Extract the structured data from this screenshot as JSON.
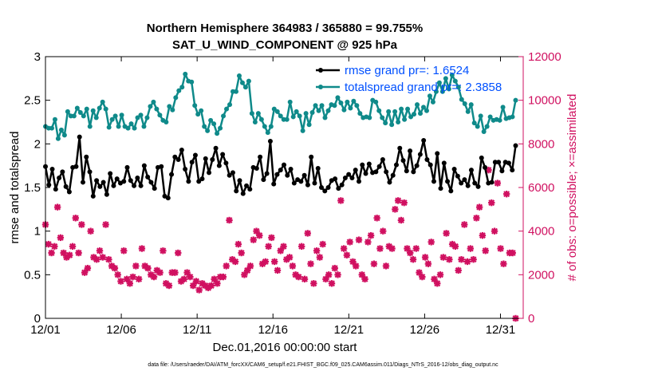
{
  "chart_data": {
    "type": "line",
    "title_line1": "Northern Hemisphere 364983 / 365880 = 99.755%",
    "title_line2": "SAT_U_WIND_COMPONENT @ 925 hPa",
    "xlabel": "Dec.01,2016 00:00:00 start",
    "ylabel": "rmse and totalspread",
    "ylabel_right": "# of obs: o=possible; ×=assimilated",
    "footnote": "data file: /Users/raeder/DAI/ATM_forcXX/CAM6_setup/f.e21.FHIST_BGC.f09_025.CAM6assim.011/Diags_NTrS_2016-12/obs_diag_output.nc",
    "xlim": [
      0,
      31.5
    ],
    "ylim": [
      0,
      3
    ],
    "ylim_right": [
      0,
      12000
    ],
    "x_tick_values": [
      0,
      5,
      10,
      15,
      20,
      25,
      30
    ],
    "x_tick_labels": [
      "12/01",
      "12/06",
      "12/11",
      "12/16",
      "12/21",
      "12/26",
      "12/31"
    ],
    "y_ticks": [
      "0",
      "0.5",
      "1",
      "1.5",
      "2",
      "2.5",
      "3"
    ],
    "y_ticks_right": [
      "0",
      "2000",
      "4000",
      "6000",
      "8000",
      "10000",
      "12000"
    ],
    "legend": [
      "rmse grand pr=: 1.6524",
      "totalspread grand pr=: 2.3858"
    ],
    "colors": {
      "rmse": "#000000",
      "spread": "#0f8a8a",
      "obs": "#d01060",
      "legend_text": "#0050ff"
    },
    "rmse": [
      1.74,
      1.53,
      1.71,
      1.48,
      1.61,
      1.68,
      1.51,
      1.45,
      1.73,
      1.74,
      2.08,
      1.56,
      1.85,
      1.68,
      1.4,
      1.58,
      1.51,
      1.56,
      1.42,
      1.66,
      1.52,
      1.6,
      1.55,
      1.57,
      1.73,
      1.58,
      1.52,
      1.61,
      1.52,
      1.75,
      1.62,
      1.56,
      1.49,
      1.73,
      1.74,
      1.4,
      1.38,
      1.65,
      1.85,
      1.82,
      1.93,
      1.71,
      1.57,
      1.79,
      1.87,
      1.57,
      1.6,
      1.83,
      1.67,
      1.82,
      1.95,
      1.75,
      1.88,
      1.78,
      1.64,
      1.67,
      1.46,
      1.58,
      1.43,
      1.52,
      1.48,
      1.73,
      1.72,
      1.85,
      1.59,
      1.66,
      2.03,
      1.54,
      1.65,
      1.7,
      1.76,
      1.64,
      1.71,
      1.55,
      1.59,
      1.57,
      1.64,
      1.53,
      1.85,
      1.55,
      1.72,
      1.5,
      1.46,
      1.5,
      1.58,
      1.6,
      1.49,
      1.53,
      1.61,
      1.65,
      1.61,
      1.7,
      1.57,
      1.76,
      1.66,
      1.77,
      1.67,
      1.68,
      1.74,
      1.82,
      1.68,
      1.56,
      1.64,
      1.76,
      1.95,
      1.81,
      1.69,
      1.92,
      1.68,
      1.75,
      1.88,
      2.04,
      1.82,
      1.76,
      1.57,
      1.89,
      1.49,
      1.78,
      1.57,
      1.46,
      1.71,
      1.63,
      1.55,
      1.59,
      1.52,
      1.7,
      1.55,
      1.51,
      1.84,
      1.73,
      1.55,
      1.56,
      1.79,
      1.79,
      1.69,
      1.79,
      1.78,
      1.7,
      1.98
    ],
    "spread": [
      2.2,
      2.18,
      2.18,
      2.28,
      2.06,
      2.16,
      2.1,
      2.37,
      2.32,
      2.32,
      2.41,
      2.36,
      2.32,
      2.4,
      2.2,
      2.38,
      2.3,
      2.41,
      2.48,
      2.4,
      2.19,
      2.28,
      2.32,
      2.2,
      2.33,
      2.2,
      2.18,
      2.23,
      2.18,
      2.3,
      2.33,
      2.2,
      2.3,
      2.43,
      2.48,
      2.4,
      2.33,
      2.27,
      2.25,
      2.43,
      2.39,
      2.53,
      2.61,
      2.65,
      2.8,
      2.72,
      2.71,
      2.44,
      2.34,
      2.38,
      2.2,
      2.15,
      2.27,
      2.23,
      2.12,
      2.18,
      2.32,
      2.4,
      2.45,
      2.6,
      2.6,
      2.78,
      2.7,
      2.65,
      2.72,
      2.35,
      2.25,
      2.35,
      2.28,
      2.2,
      2.13,
      2.2,
      2.4,
      2.37,
      2.32,
      2.28,
      2.28,
      2.48,
      2.31,
      2.37,
      2.32,
      2.15,
      2.35,
      2.22,
      2.36,
      2.44,
      2.38,
      2.44,
      2.3,
      2.38,
      2.45,
      2.44,
      2.53,
      2.47,
      2.39,
      2.48,
      2.41,
      2.49,
      2.44,
      2.35,
      2.3,
      2.31,
      2.3,
      2.5,
      2.48,
      2.38,
      2.3,
      2.24,
      2.37,
      2.22,
      2.37,
      2.25,
      2.4,
      2.28,
      2.4,
      2.31,
      2.34,
      2.45,
      2.35,
      2.42,
      2.38,
      2.55,
      2.48,
      2.6,
      2.7,
      2.6,
      2.75,
      2.63,
      2.79,
      2.72,
      2.65,
      2.51,
      2.46,
      2.37,
      2.45,
      2.24,
      2.2,
      2.32,
      2.14,
      2.2,
      2.31,
      2.27,
      2.28,
      2.27,
      2.42,
      2.29,
      2.3,
      2.31,
      2.5
    ],
    "nobs": [
      4300,
      3400,
      3000,
      3300,
      5100,
      3700,
      3000,
      2800,
      2900,
      3300,
      4600,
      3000,
      4300,
      2100,
      2300,
      4000,
      2800,
      2700,
      3100,
      2800,
      4300,
      2700,
      2400,
      2300,
      2000,
      1700,
      3100,
      1800,
      1600,
      1900,
      2400,
      1800,
      3200,
      2400,
      2300,
      2000,
      1900,
      2200,
      2100,
      3100,
      1600,
      1500,
      2100,
      2100,
      3000,
      1700,
      1800,
      2100,
      1900,
      1500,
      1700,
      1300,
      1600,
      1500,
      1400,
      1500,
      1800,
      1600,
      1900,
      1900,
      2400,
      4500,
      2700,
      2600,
      3400,
      3000,
      2000,
      2200,
      2400,
      3600,
      4000,
      3800,
      2500,
      2600,
      3300,
      3700,
      2600,
      2200,
      3100,
      3300,
      2700,
      2800,
      2400,
      2000,
      1900,
      3300,
      1800,
      3900,
      2500,
      1600,
      3100,
      2800,
      3400,
      1800,
      2000,
      1600,
      2300,
      2000,
      5400,
      3200,
      2900,
      3500,
      2600,
      2400,
      3600,
      2000,
      1800,
      3500,
      3800,
      2500,
      4600,
      3200,
      4000,
      2400,
      3300,
      3200,
      5000,
      5400,
      4500,
      5300,
      3200,
      3000,
      2700,
      3200,
      2100,
      1900,
      2800,
      2500,
      3500,
      1800,
      1600,
      2000,
      2800,
      3900,
      2700,
      3400,
      3300,
      2200,
      2700,
      4300,
      2600,
      3200,
      2700,
      4600,
      5100,
      3800,
      3100,
      6800,
      5300,
      4000,
      6200,
      3200,
      2500,
      5700,
      3000,
      3000,
      0
    ]
  }
}
